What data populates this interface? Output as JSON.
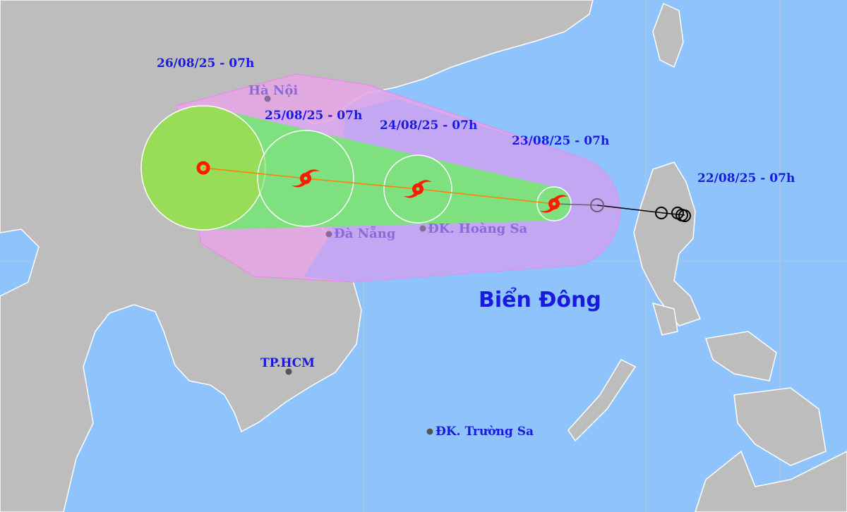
{
  "map": {
    "sea_label": "Biển Đông",
    "forecast_times": [
      "26/08/25 - 07h",
      "25/08/25 - 07h",
      "24/08/25 - 07h",
      "23/08/25 - 07h",
      "22/08/25 - 07h"
    ],
    "places": {
      "hanoi": "Hà Nội",
      "danang": "Đà Nẵng",
      "hoangsa": "ĐK. Hoàng Sa",
      "tphcm": "TP.HCM",
      "truongsa": "ĐK. Trường Sa"
    },
    "colors": {
      "sea": "#8fc3fb",
      "land": "#bdbdbd",
      "danger_zone": "#e6a6e6",
      "risk_zone": "#c0a6f4",
      "strong_wind_zone": "#7ee07e",
      "track_forecast": "#ff7f00",
      "track_past": "#000000",
      "storm_icon": "#ff1a00"
    }
  }
}
